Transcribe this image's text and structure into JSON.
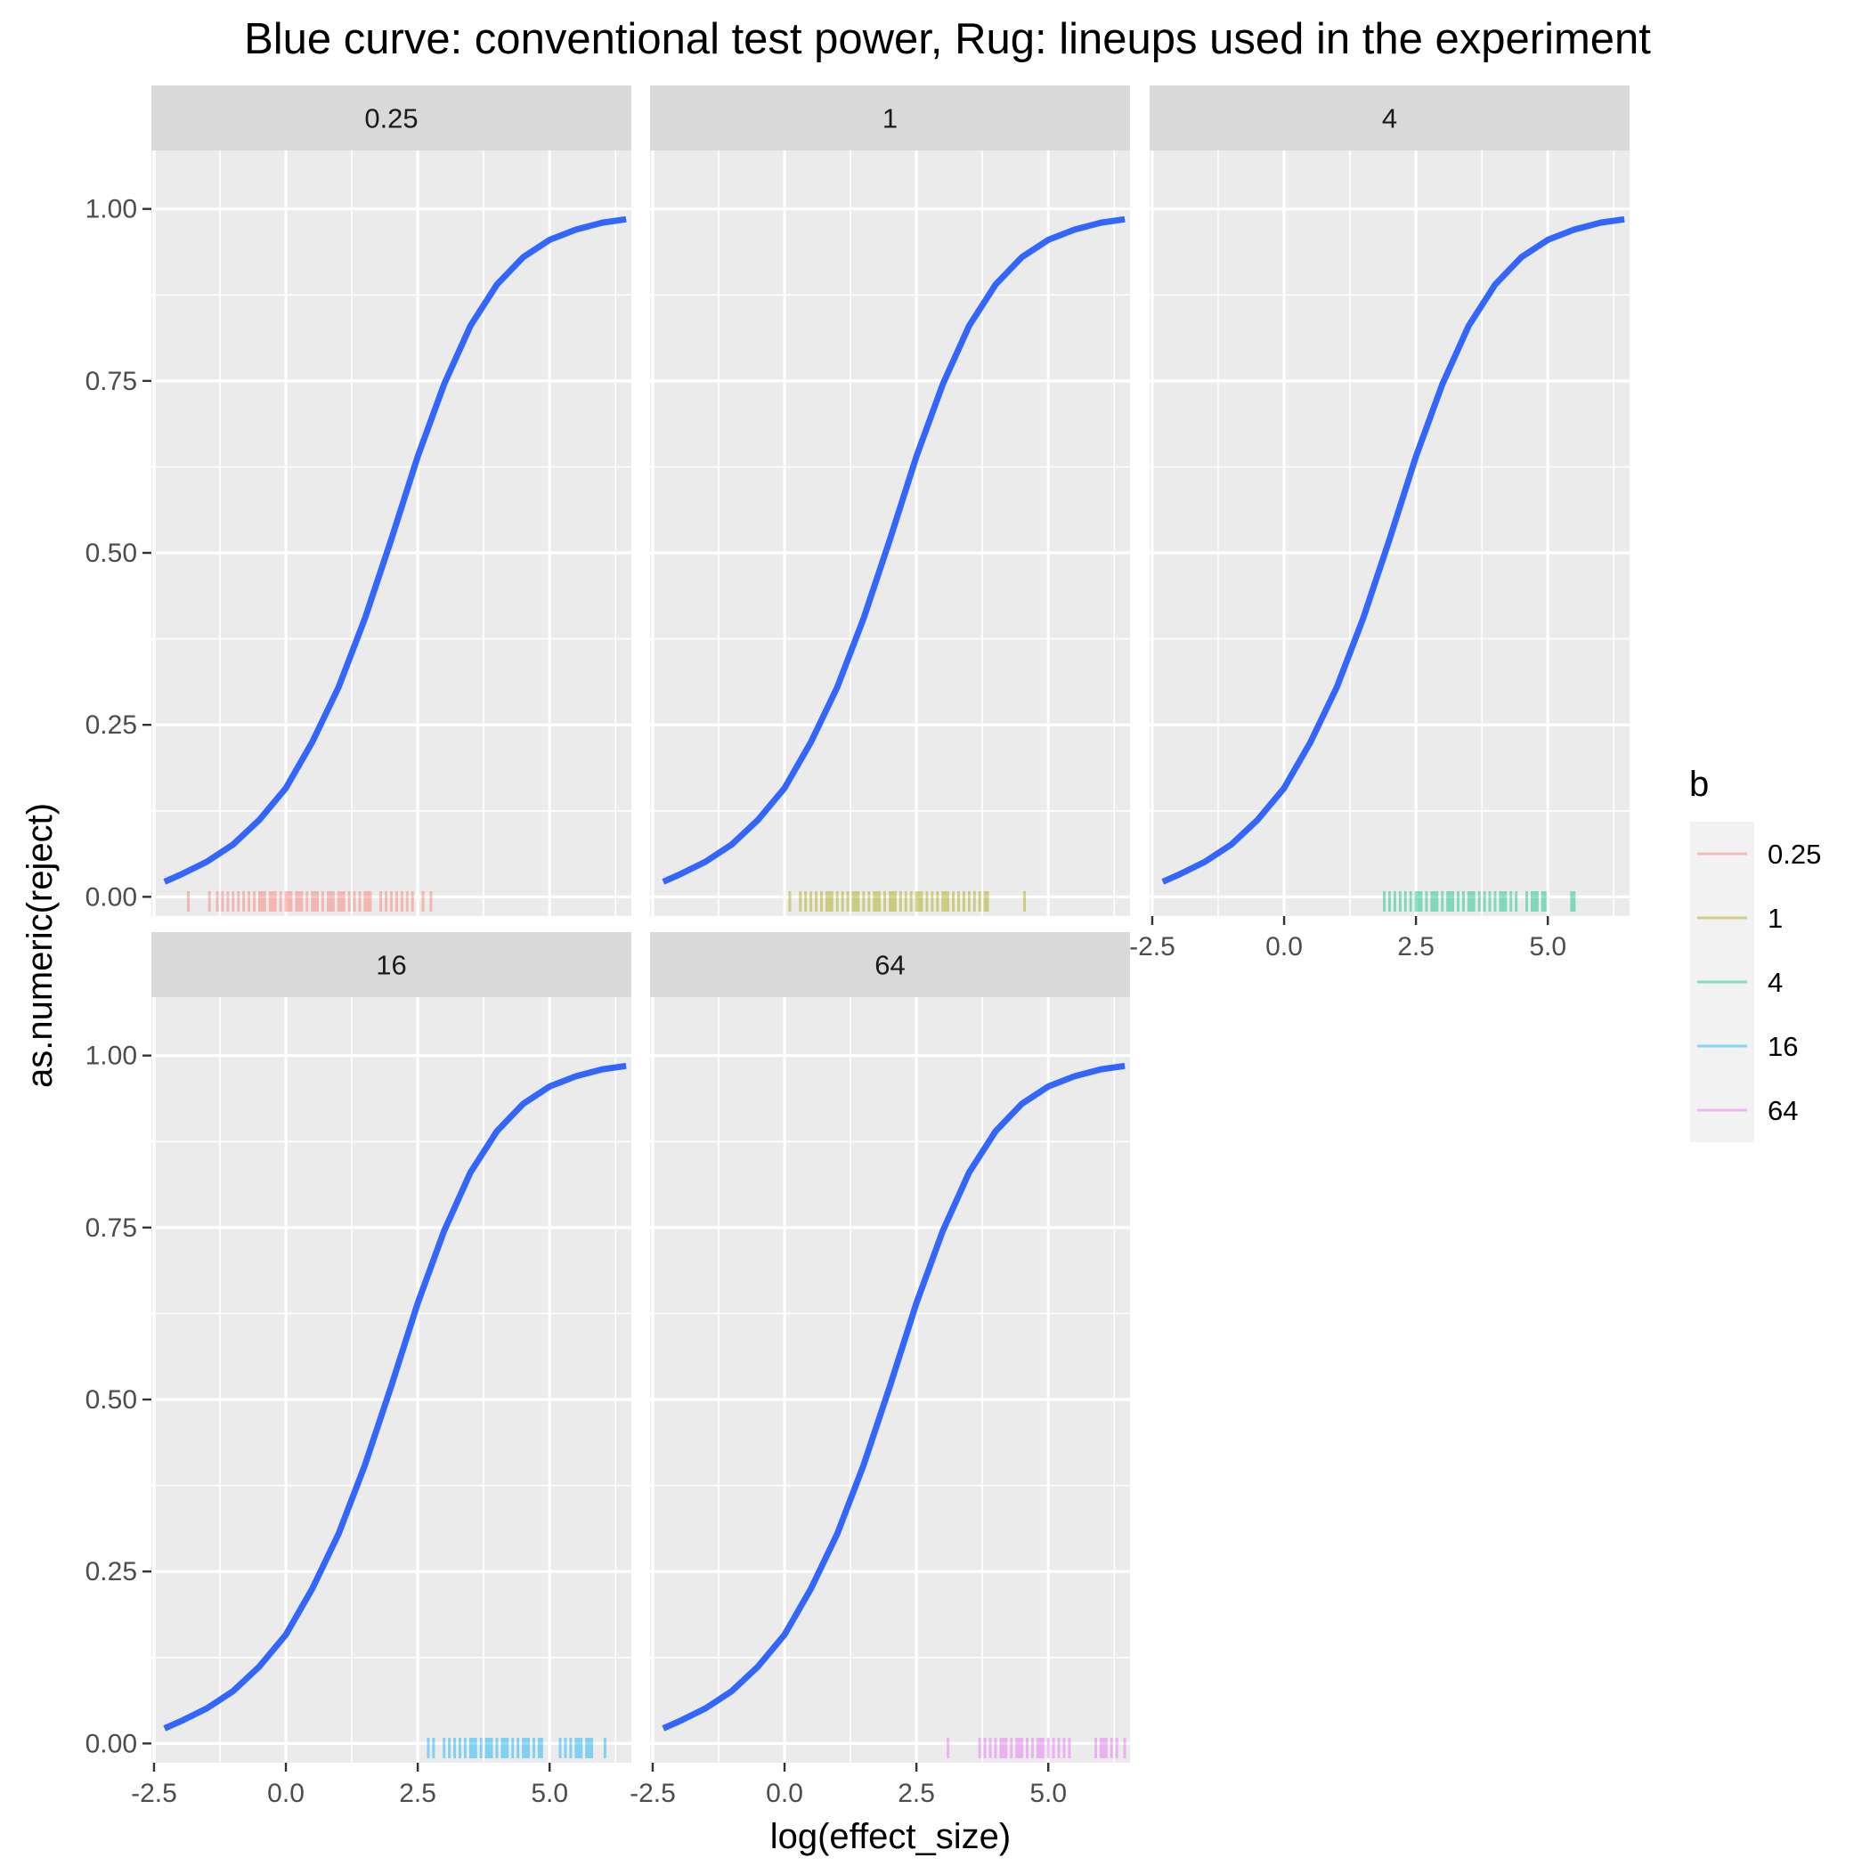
{
  "chart_data": {
    "type": "line",
    "title": "Blue curve: conventional test power, Rug: lineups used in the experiment",
    "xlabel": "log(effect_size)",
    "ylabel": "as.numeric(reject)",
    "xlim": [
      -2.55,
      6.55
    ],
    "ylim": [
      -0.028,
      1.085
    ],
    "x_ticks": [
      -2.5,
      0.0,
      2.5,
      5.0
    ],
    "x_tick_labels": [
      "-2.5",
      "0.0",
      "2.5",
      "5.0"
    ],
    "y_ticks": [
      0.0,
      0.25,
      0.5,
      0.75,
      1.0
    ],
    "y_tick_labels": [
      "0.00",
      "0.25",
      "0.50",
      "0.75",
      "1.00"
    ],
    "grid": true,
    "facet_by": "b",
    "legend": {
      "title": "b",
      "placement": "right",
      "entries": [
        {
          "label": "0.25",
          "color": "#F8766D"
        },
        {
          "label": "1",
          "color": "#A3A500"
        },
        {
          "label": "4",
          "color": "#00BF7D"
        },
        {
          "label": "16",
          "color": "#00B0F6"
        },
        {
          "label": "64",
          "color": "#E76BF3"
        }
      ]
    },
    "curve": {
      "color": "#3366FF",
      "x": [
        -2.3,
        -2.0,
        -1.5,
        -1.0,
        -0.5,
        0.0,
        0.5,
        1.0,
        1.5,
        2.0,
        2.5,
        3.0,
        3.5,
        4.0,
        4.5,
        5.0,
        5.5,
        6.0,
        6.45
      ],
      "y": [
        0.022,
        0.032,
        0.051,
        0.076,
        0.112,
        0.158,
        0.225,
        0.305,
        0.405,
        0.52,
        0.64,
        0.745,
        0.83,
        0.89,
        0.93,
        0.955,
        0.97,
        0.98,
        0.985
      ]
    },
    "panels": [
      {
        "strip_label": "0.25",
        "rug_color": "#F8766D",
        "rug_x": [
          -1.85,
          -1.45,
          -1.3,
          -1.2,
          -1.1,
          -1.0,
          -0.9,
          -0.8,
          -0.7,
          -0.6,
          -0.5,
          -0.45,
          -0.4,
          -0.3,
          -0.25,
          -0.2,
          -0.1,
          0.0,
          0.05,
          0.1,
          0.2,
          0.25,
          0.3,
          0.4,
          0.5,
          0.55,
          0.6,
          0.7,
          0.8,
          0.85,
          0.9,
          1.0,
          1.05,
          1.1,
          1.2,
          1.3,
          1.4,
          1.5,
          1.55,
          1.6,
          1.8,
          1.9,
          2.0,
          2.1,
          2.2,
          2.3,
          2.4,
          2.6,
          2.75
        ]
      },
      {
        "strip_label": "1",
        "rug_color": "#A3A500",
        "rug_x": [
          0.1,
          0.3,
          0.4,
          0.5,
          0.6,
          0.7,
          0.8,
          0.85,
          0.9,
          1.0,
          1.1,
          1.2,
          1.3,
          1.35,
          1.4,
          1.5,
          1.6,
          1.7,
          1.75,
          1.8,
          1.9,
          2.0,
          2.05,
          2.1,
          2.2,
          2.3,
          2.4,
          2.5,
          2.55,
          2.6,
          2.7,
          2.8,
          2.9,
          3.0,
          3.05,
          3.1,
          3.2,
          3.3,
          3.4,
          3.5,
          3.6,
          3.7,
          3.8,
          3.85,
          4.55
        ]
      },
      {
        "strip_label": "4",
        "rug_color": "#00BF7D",
        "rug_x": [
          1.9,
          2.0,
          2.1,
          2.2,
          2.3,
          2.4,
          2.5,
          2.55,
          2.6,
          2.7,
          2.8,
          2.85,
          2.9,
          3.0,
          3.1,
          3.15,
          3.2,
          3.3,
          3.4,
          3.5,
          3.55,
          3.6,
          3.7,
          3.8,
          3.9,
          4.0,
          4.1,
          4.15,
          4.2,
          4.3,
          4.4,
          4.6,
          4.7,
          4.75,
          4.8,
          4.9,
          4.95,
          5.45,
          5.5
        ]
      },
      {
        "strip_label": "16",
        "rug_color": "#00B0F6",
        "rug_x": [
          2.7,
          2.8,
          3.0,
          3.1,
          3.2,
          3.3,
          3.4,
          3.5,
          3.55,
          3.6,
          3.7,
          3.8,
          3.85,
          3.9,
          4.0,
          4.1,
          4.15,
          4.2,
          4.3,
          4.4,
          4.5,
          4.55,
          4.6,
          4.7,
          4.8,
          4.85,
          5.2,
          5.3,
          5.4,
          5.5,
          5.55,
          5.6,
          5.7,
          5.75,
          5.8,
          6.05
        ]
      },
      {
        "strip_label": "64",
        "rug_color": "#E76BF3",
        "rug_x": [
          3.1,
          3.7,
          3.8,
          3.9,
          4.0,
          4.1,
          4.15,
          4.2,
          4.3,
          4.4,
          4.45,
          4.5,
          4.6,
          4.7,
          4.8,
          4.85,
          4.9,
          5.0,
          5.1,
          5.2,
          5.3,
          5.4,
          5.9,
          6.0,
          6.05,
          6.1,
          6.2,
          6.3,
          6.45
        ]
      }
    ]
  }
}
